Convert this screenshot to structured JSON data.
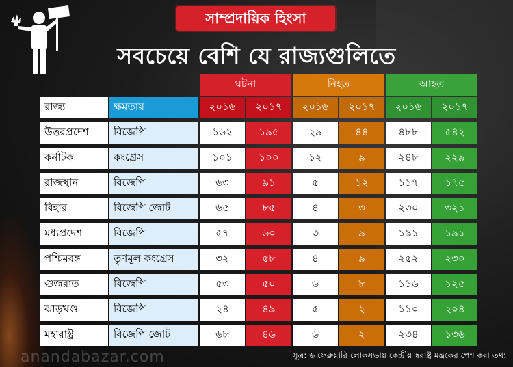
{
  "banner": "সাম্প্রদায়িক হিংসা",
  "headline": "সবচেয়ে বেশি যে রাজ্যগুলিতে",
  "group_headers": [
    "ঘটনা",
    "নিহত",
    "আহত"
  ],
  "column_headers": {
    "state": "রাজ্য",
    "power": "ক্ষমতায়",
    "years": [
      "২০১৬",
      "২০১৭",
      "২০১৬",
      "২০১৭",
      "২০১৬",
      "২০১৭"
    ]
  },
  "rows": [
    {
      "state": "উত্তরপ্রদেশ",
      "power": "বিজেপি",
      "values": [
        "১৬২",
        "১৯৫",
        "২৯",
        "৪৪",
        "৪৮৮",
        "৫৪২"
      ]
    },
    {
      "state": "কর্নাটক",
      "power": "কংগ্রেস",
      "values": [
        "১০১",
        "১০০",
        "১২",
        "৯",
        "২৪৮",
        "২২৯"
      ]
    },
    {
      "state": "রাজস্থান",
      "power": "বিজেপি",
      "values": [
        "৬৩",
        "৯১",
        "৫",
        "১২",
        "১১৭",
        "১৭৫"
      ]
    },
    {
      "state": "বিহার",
      "power": "বিজেপি জোট",
      "values": [
        "৬৫",
        "৮৫",
        "৪",
        "৩",
        "২৩০",
        "৩২১"
      ]
    },
    {
      "state": "মধ্যপ্রদেশ",
      "power": "বিজেপি",
      "values": [
        "৫৭",
        "৬০",
        "৩",
        "৯",
        "১৯১",
        "১৯১"
      ]
    },
    {
      "state": "পশ্চিমবঙ্গ",
      "power": "তৃণমূল কংগ্রেস",
      "values": [
        "৩২",
        "৫৮",
        "৪",
        "৯",
        "২৫২",
        "২৩০"
      ]
    },
    {
      "state": "গুজরাত",
      "power": "বিজেপি",
      "values": [
        "৫৩",
        "৫০",
        "৬",
        "৮",
        "১১৬",
        "১২৫"
      ]
    },
    {
      "state": "ঝাড়খণ্ড",
      "power": "বিজেপি",
      "values": [
        "২৪",
        "৪৯",
        "৫",
        "২",
        "১১০",
        "২০৪"
      ]
    },
    {
      "state": "মহারাষ্ট্র",
      "power": "বিজেপি জোট",
      "values": [
        "৬৮",
        "৪৬",
        "৬",
        "২",
        "২৩৪",
        "১৩৬"
      ]
    }
  ],
  "source": "সূত্র: ৬ ফেব্রুয়ারি লোকসভায় কেন্দ্রীয় স্বরাষ্ট্র মন্ত্রকের পেশ করা তথ্য",
  "watermark": "anandabazar.com",
  "colors": {
    "incidents": "#d6202a",
    "killed": "#d4780c",
    "injured": "#3aa23a",
    "ruling_party": "#1a9bd8"
  }
}
